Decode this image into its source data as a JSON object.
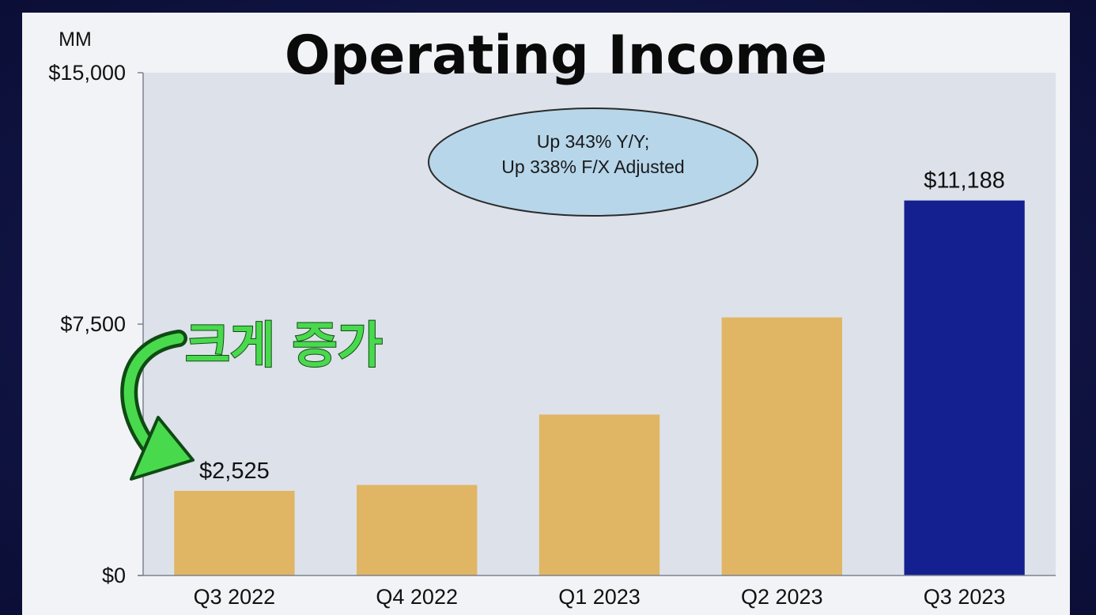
{
  "chart_data": {
    "type": "bar",
    "title": "Operating Income",
    "unit_label": "MM",
    "categories": [
      "Q3 2022",
      "Q4 2022",
      "Q1 2023",
      "Q2 2023",
      "Q3 2023"
    ],
    "values": [
      2525,
      2700,
      4800,
      7700,
      11188
    ],
    "bar_colors": [
      "#e0b564",
      "#e0b564",
      "#e0b564",
      "#e0b564",
      "#14208f"
    ],
    "data_labels": [
      "$2,525",
      "",
      "",
      "",
      "$11,188"
    ],
    "ylim": [
      0,
      15000
    ],
    "yticks": [
      0,
      7500,
      15000
    ],
    "ytick_labels": [
      "$0",
      "$7,500",
      "$15,000"
    ],
    "grid": false,
    "plot_background": "#dde1e9"
  },
  "callout": {
    "line1": "Up 343% Y/Y;",
    "line2": "Up 338% F/X Adjusted",
    "fill": "#b7d6ea"
  },
  "overlay": {
    "text": "크게 증가",
    "color": "#49d94d"
  }
}
